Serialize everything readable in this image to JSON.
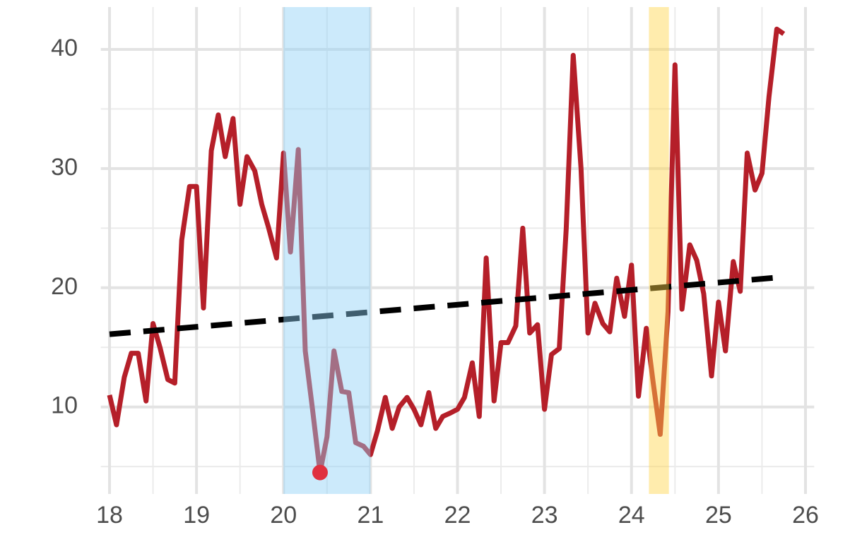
{
  "chart_data": {
    "type": "line",
    "x": [
      18,
      18.08,
      18.17,
      18.25,
      18.33,
      18.42,
      18.5,
      18.58,
      18.67,
      18.75,
      18.83,
      18.92,
      19,
      19.08,
      19.17,
      19.25,
      19.33,
      19.42,
      19.5,
      19.58,
      19.67,
      19.75,
      19.83,
      19.92,
      20,
      20.08,
      20.17,
      20.25,
      20.33,
      20.42,
      20.5,
      20.58,
      20.67,
      20.75,
      20.83,
      20.92,
      21,
      21.08,
      21.17,
      21.25,
      21.33,
      21.42,
      21.5,
      21.58,
      21.67,
      21.75,
      21.83,
      21.92,
      22,
      22.08,
      22.17,
      22.25,
      22.33,
      22.42,
      22.5,
      22.58,
      22.67,
      22.75,
      22.83,
      22.92,
      23,
      23.08,
      23.17,
      23.25,
      23.33,
      23.42,
      23.5,
      23.58,
      23.67,
      23.75,
      23.83,
      23.92,
      24,
      24.08,
      24.17,
      24.25,
      24.33,
      24.42,
      24.5,
      24.58,
      24.67,
      24.75,
      24.83,
      24.92,
      25,
      25.08,
      25.17,
      25.25,
      25.33,
      25.42,
      25.5,
      25.58,
      25.67,
      25.75
    ],
    "values": [
      11,
      8.5,
      12.5,
      14.5,
      14.5,
      10.5,
      17,
      15,
      12.3,
      12,
      24,
      28.5,
      28.5,
      18.3,
      31.5,
      34.5,
      31,
      34.2,
      27,
      31,
      29.8,
      27,
      25,
      22.5,
      31.3,
      23,
      31.6,
      14.7,
      10,
      4.5,
      7.5,
      14.7,
      11.3,
      11.2,
      7,
      6.7,
      6,
      8,
      10.8,
      8.2,
      10,
      10.8,
      9.8,
      8.5,
      11.2,
      8.2,
      9.2,
      9.5,
      9.8,
      10.8,
      13.7,
      9.2,
      22.5,
      10.5,
      15.4,
      15.4,
      16.8,
      25,
      16.2,
      16.9,
      9.8,
      14.4,
      14.9,
      25,
      39.5,
      30,
      16.2,
      18.7,
      17,
      16.3,
      20.8,
      17.6,
      21.9,
      10.9,
      16.6,
      12,
      7.7,
      18,
      38.7,
      18.2,
      23.6,
      22.3,
      19.5,
      12.6,
      18.8,
      14.7,
      22.2,
      19.7,
      31.3,
      28.2,
      29.6,
      36,
      41.7,
      41.3
    ],
    "color": "#b51f29",
    "trend": {
      "x": [
        18,
        25.75
      ],
      "values": [
        16.1,
        20.9
      ],
      "color": "#000000"
    },
    "highlight": {
      "x": 20.42,
      "value": 4.5,
      "color": "#e0303f"
    },
    "spans": [
      {
        "x": [
          20,
          21
        ],
        "color": "#8fd0f7"
      },
      {
        "x": [
          24.2,
          24.43
        ],
        "color": "#ffd54a"
      }
    ],
    "xlim": [
      17.9,
      26.1
    ],
    "xticks": [
      18,
      19,
      20,
      21,
      22,
      23,
      24,
      25,
      26
    ],
    "ylim": [
      2.7,
      43.55
    ],
    "yticks": [
      10,
      20,
      30,
      40
    ],
    "x_minor_grid": [
      18.5,
      19.5,
      20.5,
      21.5,
      22.5,
      23.5,
      24.5,
      25.5
    ],
    "y_minor_grid": [
      5,
      15,
      25,
      35
    ],
    "grid": true
  }
}
